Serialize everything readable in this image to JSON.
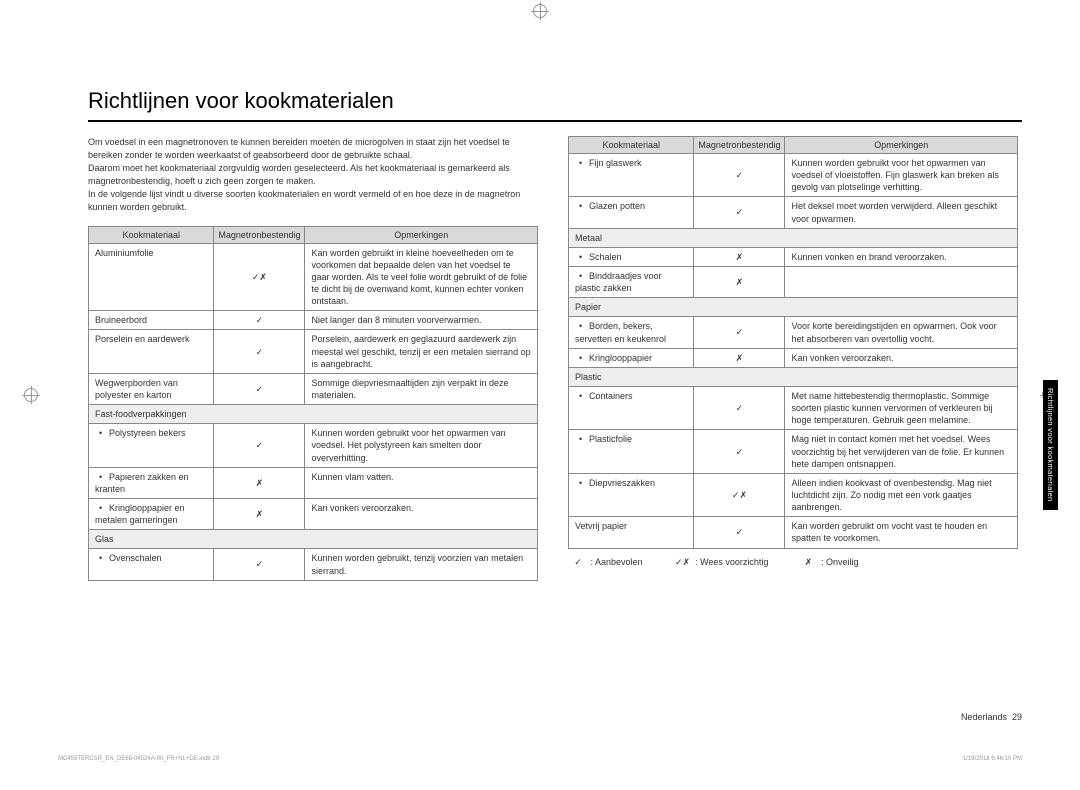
{
  "heading": "Richtlijnen voor kookmaterialen",
  "side_tab": "Richtlijnen voor kookmaterialen",
  "intro": [
    "Om voedsel in een magnetronoven te kunnen bereiden moeten de microgolven in staat zijn het voedsel te bereiken zonder te worden weerkaatst of geabsorbeerd door de gebruikte schaal.",
    "Daarom moet het kookmateriaal zorgvuldig worden geselecteerd. Als het kookmateriaal is gemarkeerd als magnetronbestendig, hoeft u zich geen zorgen te maken.",
    "In de volgende lijst vindt u diverse soorten kookmaterialen en wordt vermeld of en hoe deze in de magnetron kunnen worden gebruikt."
  ],
  "headers": {
    "material": "Kookmateriaal",
    "safe": "Magnetronbestendig",
    "remarks": "Opmerkingen"
  },
  "left_rows": [
    {
      "type": "row",
      "material": "Aluminiumfolie",
      "safe": "✓✗",
      "remarks": "Kan worden gebruikt in kleine hoeveelheden om te voorkomen dat bepaalde delen van het voedsel te gaar worden. Als te veel folie wordt gebruikt of de folie te dicht bij de ovenwand komt, kunnen echter vonken ontstaan."
    },
    {
      "type": "row",
      "material": "Bruineerbord",
      "safe": "✓",
      "remarks": "Niet langer dan 8 minuten voorverwarmen."
    },
    {
      "type": "row",
      "material": "Porselein en aardewerk",
      "safe": "✓",
      "remarks": "Porselein, aardewerk en geglazuurd aardewerk zijn meestal wel geschikt, tenzij er een metalen sierrand op is aangebracht."
    },
    {
      "type": "row",
      "material": "Wegwerpborden van polyester en karton",
      "safe": "✓",
      "remarks": "Sommige diepvriesmaaltijden zijn verpakt in deze materialen."
    },
    {
      "type": "cat",
      "label": "Fast-foodverpakkingen"
    },
    {
      "type": "sub",
      "material": "Polystyreen bekers",
      "safe": "✓",
      "remarks": "Kunnen worden gebruikt voor het opwarmen van voedsel. Het polystyreen kan smelten door oververhitting."
    },
    {
      "type": "sub",
      "material": "Papieren zakken en kranten",
      "safe": "✗",
      "remarks": "Kunnen vlam vatten."
    },
    {
      "type": "sub",
      "material": "Kringlooppapier en metalen garneringen",
      "safe": "✗",
      "remarks": "Kan vonken veroorzaken."
    },
    {
      "type": "cat",
      "label": "Glas"
    },
    {
      "type": "sub",
      "material": "Ovenschalen",
      "safe": "✓",
      "remarks": "Kunnen worden gebruikt, tenzij voorzien van metalen sierrand."
    }
  ],
  "right_rows": [
    {
      "type": "sub",
      "material": "Fijn glaswerk",
      "safe": "✓",
      "remarks": "Kunnen worden gebruikt voor het opwarmen van voedsel of vloeistoffen. Fijn glaswerk kan breken als gevolg van plotselinge verhitting."
    },
    {
      "type": "sub",
      "material": "Glazen potten",
      "safe": "✓",
      "remarks": "Het deksel moet worden verwijderd. Alleen geschikt voor opwarmen."
    },
    {
      "type": "cat",
      "label": "Metaal"
    },
    {
      "type": "sub",
      "material": "Schalen",
      "safe": "✗",
      "remarks": "Kunnen vonken en brand veroorzaken."
    },
    {
      "type": "sub",
      "material": "Binddraadjes voor plastic zakken",
      "safe": "✗",
      "remarks": ""
    },
    {
      "type": "cat",
      "label": "Papier"
    },
    {
      "type": "sub",
      "material": "Borden, bekers, servetten en keukenrol",
      "safe": "✓",
      "remarks": "Voor korte bereidingstijden en opwarmen. Ook voor het absorberen van overtollig vocht."
    },
    {
      "type": "sub",
      "material": "Kringlooppapier",
      "safe": "✗",
      "remarks": "Kan vonken veroorzaken."
    },
    {
      "type": "cat",
      "label": "Plastic"
    },
    {
      "type": "sub",
      "material": "Containers",
      "safe": "✓",
      "remarks": "Met name hittebestendig thermoplastic. Sommige soorten plastic kunnen vervormen of verkleuren bij hoge temperaturen. Gebruik geen melamine."
    },
    {
      "type": "sub",
      "material": "Plasticfolie",
      "safe": "✓",
      "remarks": "Mag niet in contact komen met het voedsel. Wees voorzichtig bij het verwijderen van de folie. Er kunnen hete dampen ontsnappen."
    },
    {
      "type": "sub",
      "material": "Diepvrieszakken",
      "safe": "✓✗",
      "remarks": "Alleen indien kookvast of ovenbestendig. Mag niet luchtdicht zijn. Zo nodig met een vork gaatjes aanbrengen."
    },
    {
      "type": "row",
      "material": "Vetvrij papier",
      "safe": "✓",
      "remarks": "Kan worden gebruikt om vocht vast te houden en spatten te voorkomen."
    }
  ],
  "legend": [
    {
      "sym": "✓",
      "text": ": Aanbevolen"
    },
    {
      "sym": "✓✗",
      "text": ": Wees voorzichtig"
    },
    {
      "sym": "✗",
      "text": ": Onveilig"
    }
  ],
  "footer": {
    "lang": "Nederlands",
    "page": "29"
  },
  "imprint": {
    "file": "MC455TERCSR_EN_DE68-04524A-00_FR+NL+DE.indb   29",
    "date": "1/18/2018   6:46:10 PM"
  }
}
